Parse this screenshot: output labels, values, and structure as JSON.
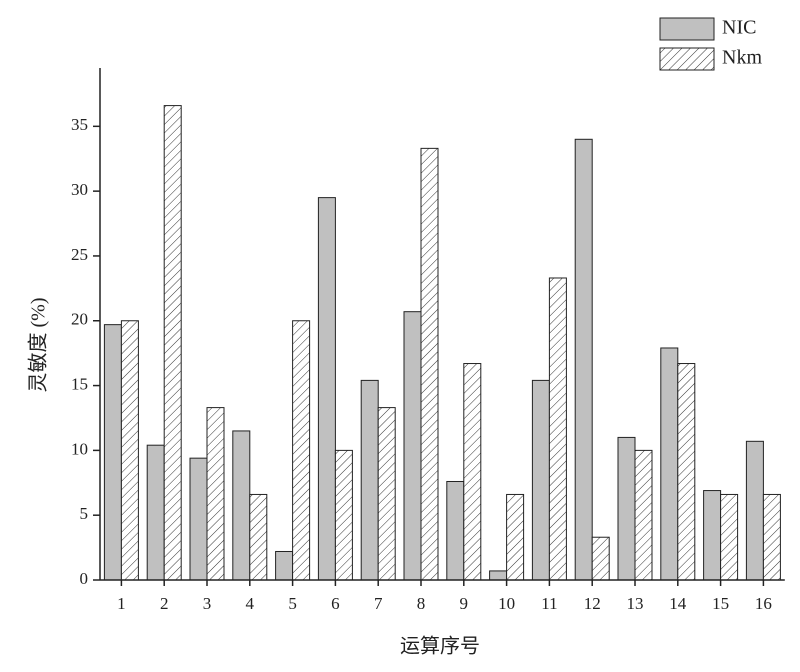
{
  "chart_data": {
    "type": "bar",
    "x_label": "运算序号",
    "y_label": "灵敏度 (%)",
    "categories": [
      "1",
      "2",
      "3",
      "4",
      "5",
      "6",
      "7",
      "8",
      "9",
      "10",
      "11",
      "12",
      "13",
      "14",
      "15",
      "16"
    ],
    "series": [
      {
        "name": "NIC",
        "color": "#c0c0c0",
        "values": [
          19.7,
          10.4,
          9.4,
          11.5,
          2.2,
          29.5,
          15.4,
          20.7,
          7.6,
          0.7,
          15.4,
          34.0,
          11.0,
          17.9,
          6.9,
          10.7
        ]
      },
      {
        "name": "Nkm",
        "color": "#ffffff",
        "hatch": true,
        "values": [
          20.0,
          36.6,
          13.3,
          6.6,
          20.0,
          10.0,
          13.3,
          33.3,
          16.7,
          6.6,
          23.3,
          3.3,
          10.0,
          16.7,
          6.6,
          6.6
        ]
      }
    ],
    "ylim": [
      0,
      39.5
    ],
    "yticks": [
      0,
      5,
      10,
      15,
      20,
      25,
      30,
      35
    ],
    "grid": false,
    "legend": "top-right"
  }
}
